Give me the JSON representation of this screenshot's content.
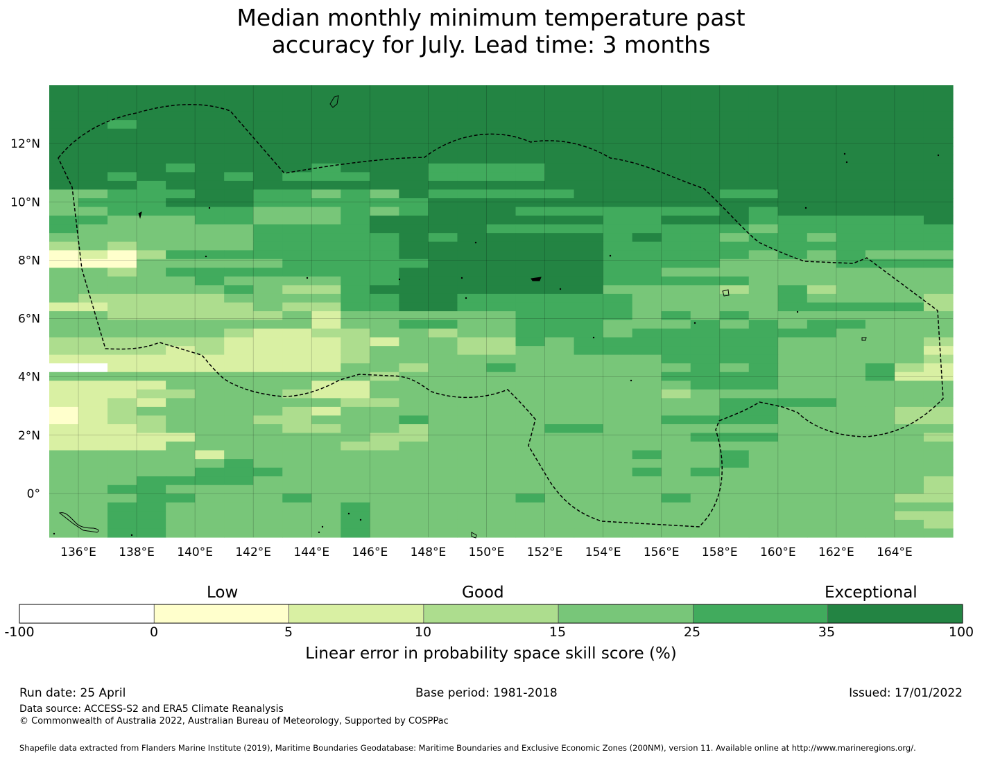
{
  "title_lines": [
    "Median monthly minimum temperature past",
    "accuracy for July. Lead time: 3 months"
  ],
  "map": {
    "lon_range": [
      135,
      166
    ],
    "lat_range": [
      -1.5,
      14
    ],
    "x_ticks": [
      {
        "v": 136,
        "label": "136°E"
      },
      {
        "v": 138,
        "label": "138°E"
      },
      {
        "v": 140,
        "label": "140°E"
      },
      {
        "v": 142,
        "label": "142°E"
      },
      {
        "v": 144,
        "label": "144°E"
      },
      {
        "v": 146,
        "label": "146°E"
      },
      {
        "v": 148,
        "label": "148°E"
      },
      {
        "v": 150,
        "label": "150°E"
      },
      {
        "v": 152,
        "label": "152°E"
      },
      {
        "v": 154,
        "label": "154°E"
      },
      {
        "v": 156,
        "label": "156°E"
      },
      {
        "v": 158,
        "label": "158°E"
      },
      {
        "v": 160,
        "label": "160°E"
      },
      {
        "v": 162,
        "label": "162°E"
      },
      {
        "v": 164,
        "label": "164°E"
      }
    ],
    "y_ticks": [
      {
        "v": 12,
        "label": "12°N"
      },
      {
        "v": 10,
        "label": "10°N"
      },
      {
        "v": 8,
        "label": "8°N"
      },
      {
        "v": 6,
        "label": "6°N"
      },
      {
        "v": 4,
        "label": "4°N"
      },
      {
        "v": 2,
        "label": "2°N"
      },
      {
        "v": 0,
        "label": "0°"
      }
    ],
    "colors": [
      "#ffffff",
      "#ffffcc",
      "#d9f0a3",
      "#addd8e",
      "#78c679",
      "#41ab5d",
      "#238443"
    ],
    "grid_note": "",
    "skill_rows": [
      "6666666666666666666666666666666",
      "6666666666666666666666666666666",
      "6666666666666666666666666666666",
      "6666666666666666666666666666666",
      "6656666666666666666666666666666",
      "6666666666666666666666666666666",
      "6666666666666666666666666666666",
      "6666666666666666666666666666666",
      "6666666666666666666666666666666",
      "6666566665666555566666666666666",
      "6656665655566555566666666666666",
      "6665666666666666666666666666666",
      "4455566554546555556666655666666",
      "4555666555555666666666666666666",
      "4455555444545666555555565666666",
      "5544455444566666666556665555556",
      "5444444555566665555555554555555",
      "4444444555556566666565545545555",
      "3434444555556666666555555555555",
      "1213555555556666666555554545444",
      "1114444455555666666555544445555",
      "4434555555556666666554444444444",
      "4444454444556666666555554444444",
      "4444445433566666666444434534444",
      "4333334444556655555544444544443",
      "2233333433556655555544444555553",
      "4433333342444444555545454444444",
      "4444444442445544555444545455444",
      "4444443223344344555455555554444",
      "3333332222324433545555555444443",
      "3333232222344433445555555444442",
      "2222222222344444444445555444443",
      "0022222222443445444444545444532",
      "4444444444434444444445555444522",
      "2222444442244444444444555444444",
      "2223344432244444444443444444444",
      "2232444444334444444444455554444",
      "1234444432444444444444455444433",
      "1233444334445444444445555444433",
      "2223444433443444455444444444444",
      "2222244444433444444444555444443",
      "2222444444334444444444444444444",
      "4444424444444444444454454444444",
      "4444445444444444444444454444444",
      "4444455544444444444454544444444",
      "4445555444444444444444444444443",
      "4455444444444444444444444444443",
      "4445544454444444544445444444433",
      "4455444444544444444444444444444",
      "4455444444544444444444444444433",
      "4455444444544444444444444444443",
      "4455444444544444444444444444444"
    ]
  },
  "colorbar": {
    "low_label": "Low",
    "good_label": "Good",
    "exceptional_label": "Exceptional",
    "boundaries": [
      "-100",
      "0",
      "5",
      "10",
      "15",
      "25",
      "35",
      "100"
    ],
    "title": "Linear error in probability space skill score (%)"
  },
  "footer": {
    "run_date": "Run date: 25 April",
    "base_period": "Base period: 1981-2018",
    "issued": "Issued: 17/01/2022",
    "data_source": "Data source: ACCESS-S2 and ERA5 Climate Reanalysis",
    "copyright": "© Commonwealth of Australia 2022, Australian Bureau of Meteorology, Supported by COSPPac",
    "shapefile": "Shapefile data extracted from Flanders Marine Institute (2019), Maritime Boundaries Geodatabase: Maritime Boundaries and Exclusive Economic Zones (200NM), version 11. Available online at http://www.marineregions.org/."
  }
}
